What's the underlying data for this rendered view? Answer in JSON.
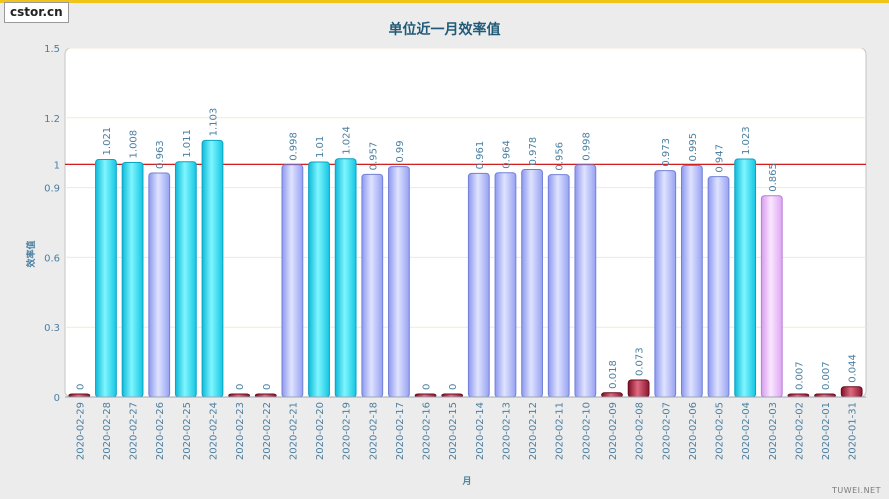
{
  "logo": "cstor.cn",
  "watermark": "TUWEI.NET",
  "chart_data": {
    "type": "bar",
    "title": "单位近一月效率值",
    "xlabel": "月",
    "ylabel": "效率值",
    "ylim": [
      0,
      1.5
    ],
    "yticks": [
      0,
      0.3,
      0.6,
      0.9,
      1,
      1.2,
      1.5
    ],
    "reference_line": 1,
    "categories": [
      "2020-02-29",
      "2020-02-28",
      "2020-02-27",
      "2020-02-26",
      "2020-02-25",
      "2020-02-24",
      "2020-02-23",
      "2020-02-22",
      "2020-02-21",
      "2020-02-20",
      "2020-02-19",
      "2020-02-18",
      "2020-02-17",
      "2020-02-16",
      "2020-02-15",
      "2020-02-14",
      "2020-02-13",
      "2020-02-12",
      "2020-02-11",
      "2020-02-10",
      "2020-02-09",
      "2020-02-08",
      "2020-02-07",
      "2020-02-06",
      "2020-02-05",
      "2020-02-04",
      "2020-02-03",
      "2020-02-02",
      "2020-02-01",
      "2020-01-31"
    ],
    "values": [
      0,
      1.021,
      1.008,
      0.963,
      1.011,
      1.103,
      0,
      0,
      0.998,
      1.01,
      1.024,
      0.957,
      0.99,
      0,
      0,
      0.961,
      0.964,
      0.978,
      0.956,
      0.998,
      0.018,
      0.073,
      0.973,
      0.995,
      0.947,
      1.023,
      0.865,
      0.007,
      0.007,
      0.044
    ],
    "labels": [
      "0",
      "1.021",
      "1.008",
      "0.963",
      "1.011",
      "1.103",
      "0",
      "0",
      "0.998",
      "1.01",
      "1.024",
      "0.957",
      "0.99",
      "0",
      "0",
      "0.961",
      "0.964",
      "0.978",
      "0.956",
      "0.998",
      "0.018",
      "0.073",
      "0.973",
      "0.995",
      "0.947",
      "1.023",
      "0.865",
      "0.007",
      "0.007",
      "0.044"
    ],
    "colors": {
      "cyan": "#2fdcf5",
      "lavender": "#aab4ff",
      "pink": "#f0b8ff",
      "red": "#a8223a",
      "reference_line": "#cc0000"
    }
  }
}
